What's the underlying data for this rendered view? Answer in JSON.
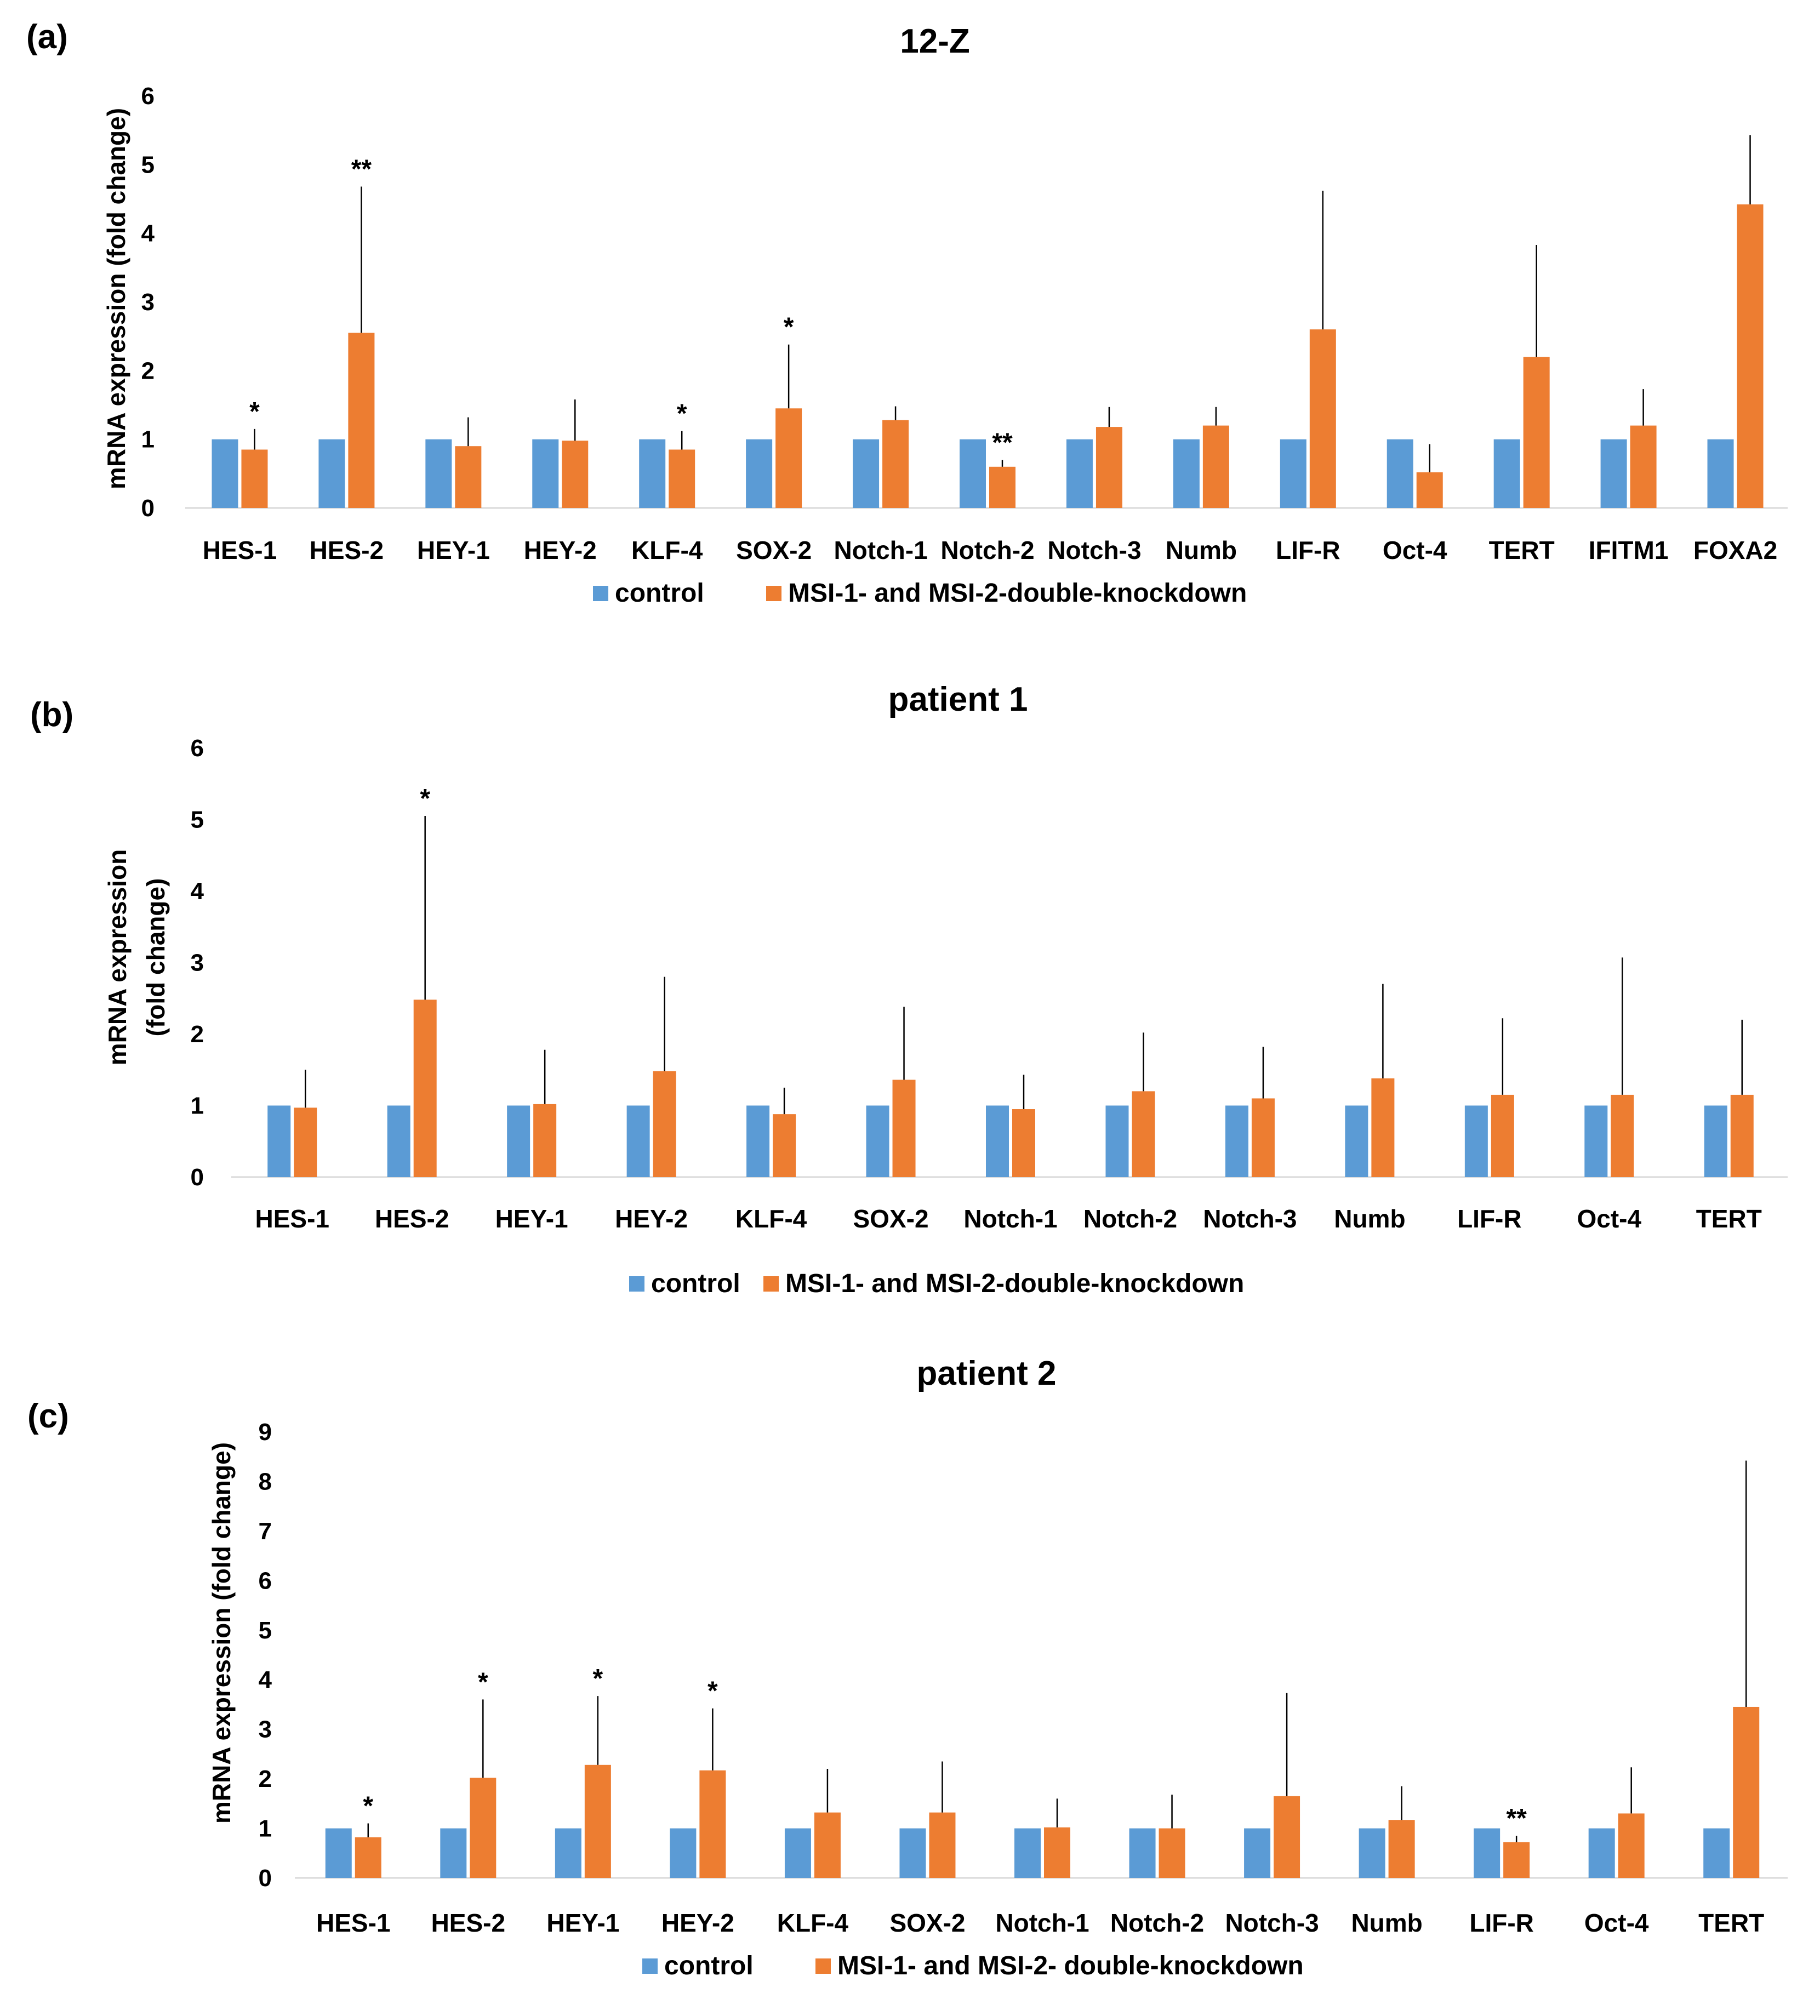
{
  "colors": {
    "control": "#5B9BD5",
    "knockdown": "#ED7D31"
  },
  "chart_data": [
    {
      "type": "bar",
      "panel": "(a)",
      "title": "12-Z",
      "xlabel": "",
      "ylabel": "mRNA expression (fold change)",
      "ylim": [
        0,
        6
      ],
      "yticks": [
        "0",
        "1",
        "2",
        "3",
        "4",
        "5",
        "6"
      ],
      "categories": [
        "HES-1",
        "HES-2",
        "HEY-1",
        "HEY-2",
        "KLF-4",
        "SOX-2",
        "Notch-1",
        "Notch-2",
        "Notch-3",
        "Numb",
        "LIF-R",
        "Oct-4",
        "TERT",
        "IFITM1",
        "FOXA2"
      ],
      "series": [
        {
          "name": "control",
          "values": [
            1,
            1,
            1,
            1,
            1,
            1,
            1,
            1,
            1,
            1,
            1,
            1,
            1,
            1,
            1
          ]
        },
        {
          "name": "MSI-1- and MSI-2-double-knockdown",
          "values": [
            0.85,
            2.55,
            0.9,
            0.98,
            0.85,
            1.45,
            1.28,
            0.6,
            1.18,
            1.2,
            2.6,
            0.52,
            2.2,
            1.2,
            4.42
          ],
          "error": [
            1.15,
            4.68,
            1.32,
            1.58,
            1.12,
            2.38,
            1.48,
            0.7,
            1.47,
            1.47,
            4.62,
            0.93,
            3.83,
            1.73,
            5.43
          ]
        }
      ],
      "significance": [
        "*",
        "**",
        "",
        "",
        "*",
        "*",
        "",
        "**",
        "",
        "",
        "",
        "",
        "",
        "",
        ""
      ],
      "legend": [
        "control",
        "MSI-1- and MSI-2-double-knockdown"
      ]
    },
    {
      "type": "bar",
      "panel": "(b)",
      "title": "patient 1",
      "xlabel": "",
      "ylabel_lines": [
        "mRNA expression",
        "(fold change)"
      ],
      "ylim": [
        0,
        6
      ],
      "yticks": [
        "0",
        "1",
        "2",
        "3",
        "4",
        "5",
        "6"
      ],
      "categories": [
        "HES-1",
        "HES-2",
        "HEY-1",
        "HEY-2",
        "KLF-4",
        "SOX-2",
        "Notch-1",
        "Notch-2",
        "Notch-3",
        "Numb",
        "LIF-R",
        "Oct-4",
        "TERT"
      ],
      "series": [
        {
          "name": "control",
          "values": [
            1,
            1,
            1,
            1,
            1,
            1,
            1,
            1,
            1,
            1,
            1,
            1,
            1
          ]
        },
        {
          "name": "MSI-1- and MSI-2-double-knockdown",
          "values": [
            0.97,
            2.48,
            1.02,
            1.48,
            0.88,
            1.36,
            0.95,
            1.2,
            1.1,
            1.38,
            1.15,
            1.15,
            1.15
          ],
          "error": [
            1.5,
            5.05,
            1.78,
            2.8,
            1.25,
            2.38,
            1.43,
            2.02,
            1.82,
            2.7,
            2.22,
            3.07,
            2.2
          ]
        }
      ],
      "significance": [
        "",
        "*",
        "",
        "",
        "",
        "",
        "",
        "",
        "",
        "",
        "",
        "",
        ""
      ],
      "legend": [
        "control",
        "MSI-1- and MSI-2-double-knockdown"
      ]
    },
    {
      "type": "bar",
      "panel": "(c)",
      "title": "patient 2",
      "xlabel": "",
      "ylabel": "mRNA expression (fold change)",
      "ylim": [
        0,
        9
      ],
      "yticks": [
        "0",
        "1",
        "2",
        "3",
        "4",
        "5",
        "6",
        "7",
        "8",
        "9"
      ],
      "categories": [
        "HES-1",
        "HES-2",
        "HEY-1",
        "HEY-2",
        "KLF-4",
        "SOX-2",
        "Notch-1",
        "Notch-2",
        "Notch-3",
        "Numb",
        "LIF-R",
        "Oct-4",
        "TERT"
      ],
      "series": [
        {
          "name": "control",
          "values": [
            1,
            1,
            1,
            1,
            1,
            1,
            1,
            1,
            1,
            1,
            1,
            1,
            1
          ]
        },
        {
          "name": "MSI-1- and MSI-2- double-knockdown",
          "values": [
            0.82,
            2.02,
            2.28,
            2.17,
            1.32,
            1.32,
            1.02,
            1.0,
            1.65,
            1.17,
            0.72,
            1.3,
            3.45
          ],
          "error": [
            1.1,
            3.6,
            3.67,
            3.42,
            2.2,
            2.35,
            1.6,
            1.68,
            3.73,
            1.85,
            0.85,
            2.23,
            8.42
          ]
        }
      ],
      "significance": [
        "*",
        "*",
        "*",
        "*",
        "",
        "",
        "",
        "",
        "",
        "",
        "**",
        "",
        ""
      ],
      "legend": [
        "control",
        "MSI-1- and MSI-2- double-knockdown"
      ]
    }
  ]
}
